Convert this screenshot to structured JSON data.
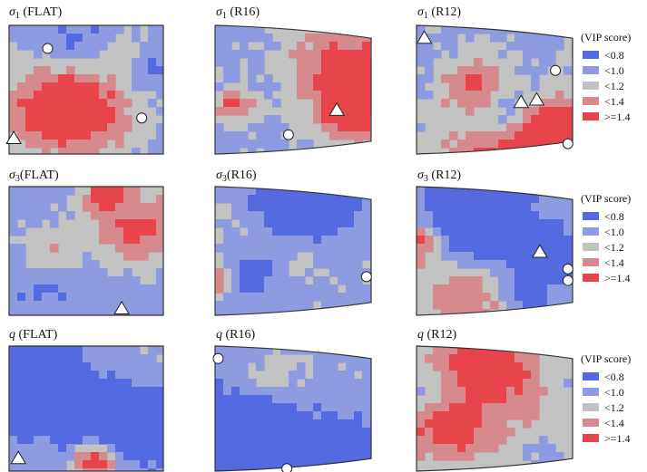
{
  "colors": {
    "c08": "#5569e0",
    "c10": "#8f9be0",
    "c12": "#c2c2c2",
    "c14": "#d68a8e",
    "c15": "#e8444c",
    "outline": "#333333",
    "marker_fill": "#ffffff"
  },
  "legends": [
    {
      "title": "(VIP score)",
      "entries": [
        {
          "label": "<0.8",
          "color": "#5569e0"
        },
        {
          "label": "<1.0",
          "color": "#8f9be0"
        },
        {
          "label": "<1.2",
          "color": "#c2c2c2"
        },
        {
          "label": "<1.4",
          "color": "#d68a8e"
        },
        {
          "label": ">=1.4",
          "color": "#e8444c"
        }
      ]
    },
    {
      "title": "(VIP score)",
      "entries": [
        {
          "label": "<0.8",
          "color": "#5569e0"
        },
        {
          "label": "<1.0",
          "color": "#8f9be0"
        },
        {
          "label": "<1.2",
          "color": "#c2c2c2"
        },
        {
          "label": "<1.4",
          "color": "#d68a8e"
        },
        {
          "label": ">=1.4",
          "color": "#e8444c"
        }
      ]
    },
    {
      "title": "(VIP score)",
      "entries": [
        {
          "label": "<0.8",
          "color": "#5569e0"
        },
        {
          "label": "<1.0",
          "color": "#8f9be0"
        },
        {
          "label": "<1.2",
          "color": "#c2c2c2"
        },
        {
          "label": "<1.4",
          "color": "#d68a8e"
        },
        {
          "label": ">=1.4",
          "color": "#e8444c"
        }
      ]
    }
  ],
  "panels": [
    {
      "symbol": "σ",
      "sub": "1",
      "label": " (FLAT)",
      "shape": "rect",
      "seed": 11,
      "triangles": [
        [
          0.03,
          0.88
        ]
      ],
      "circles": [
        [
          0.25,
          0.18
        ],
        [
          0.86,
          0.72
        ]
      ]
    },
    {
      "symbol": "σ",
      "sub": "1",
      "label": " (R16)",
      "shape": "curved",
      "seed": 23,
      "triangles": [
        [
          0.78,
          0.66
        ]
      ],
      "circles": [
        [
          0.47,
          0.85
        ]
      ]
    },
    {
      "symbol": "σ",
      "sub": "1",
      "label": " (R12)",
      "shape": "curved",
      "seed": 37,
      "triangles": [
        [
          0.05,
          0.1
        ],
        [
          0.67,
          0.6
        ],
        [
          0.77,
          0.58
        ]
      ],
      "circles": [
        [
          0.89,
          0.35
        ],
        [
          0.97,
          0.92
        ]
      ]
    },
    {
      "symbol": "σ",
      "sub": "3",
      "label": "(FLAT)",
      "shape": "rect",
      "seed": 41,
      "triangles": [
        [
          0.73,
          0.95
        ]
      ],
      "circles": []
    },
    {
      "symbol": "σ",
      "sub": "3",
      "label": "(R16)",
      "shape": "curved",
      "seed": 53,
      "triangles": [],
      "circles": [
        [
          0.97,
          0.7
        ]
      ]
    },
    {
      "symbol": "σ",
      "sub": "3",
      "label": " (R12)",
      "shape": "curved",
      "seed": 67,
      "triangles": [
        [
          0.79,
          0.51
        ]
      ],
      "circles": [
        [
          0.97,
          0.64
        ],
        [
          0.97,
          0.73
        ]
      ]
    },
    {
      "symbol": "q",
      "sub": "",
      "label": " (FLAT)",
      "shape": "rect",
      "seed": 71,
      "triangles": [
        [
          0.06,
          0.9
        ]
      ],
      "circles": []
    },
    {
      "symbol": "q",
      "sub": "",
      "label": " (R16)",
      "shape": "curved",
      "seed": 83,
      "triangles": [],
      "circles": [
        [
          0.02,
          0.1
        ],
        [
          0.46,
          0.98
        ]
      ]
    },
    {
      "symbol": "q",
      "sub": "",
      "label": " (R12)",
      "shape": "curved",
      "seed": 97,
      "triangles": [],
      "circles": []
    }
  ]
}
